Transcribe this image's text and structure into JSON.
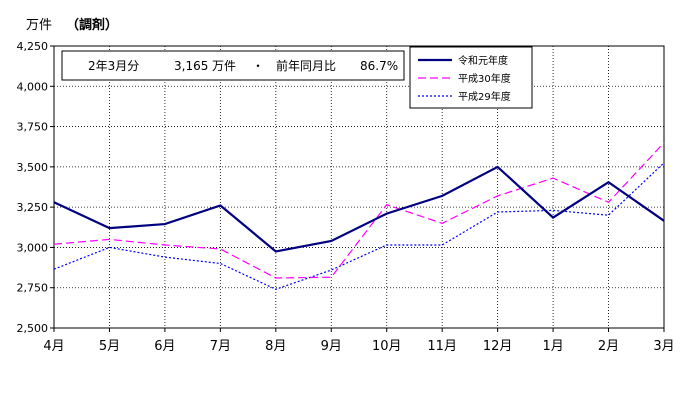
{
  "unit_label": "万件",
  "category_label": "（調剤）",
  "summary": {
    "month": "2年3月分",
    "count_value": "3,165",
    "count_unit": "万件",
    "bullet": "・",
    "ratio_label": "前年同月比",
    "ratio_value": "86.7%"
  },
  "chart_data": {
    "type": "line",
    "categories": [
      "4月",
      "5月",
      "6月",
      "7月",
      "8月",
      "9月",
      "10月",
      "11月",
      "12月",
      "1月",
      "2月",
      "3月"
    ],
    "ylim": [
      2500,
      4250
    ],
    "yticks": [
      "2,500",
      "2,750",
      "3,000",
      "3,250",
      "3,500",
      "3,750",
      "4,000",
      "4,250"
    ],
    "ytick_values": [
      2500,
      2750,
      3000,
      3250,
      3500,
      3750,
      4000,
      4250
    ],
    "grid": true,
    "legend_position": "top-right",
    "series": [
      {
        "name": "令和元年度",
        "color": "#000080",
        "style": "solid",
        "values": [
          3280,
          3120,
          3145,
          3260,
          2975,
          3040,
          3210,
          3320,
          3500,
          3185,
          3405,
          3165
        ]
      },
      {
        "name": "平成30年度",
        "color": "#ff00ff",
        "style": "dashed",
        "values": [
          3020,
          3050,
          3015,
          2990,
          2810,
          2815,
          3265,
          3150,
          3320,
          3430,
          3280,
          3650
        ]
      },
      {
        "name": "平成29年度",
        "color": "#0000ff",
        "style": "dotted",
        "values": [
          2865,
          3000,
          2940,
          2900,
          2740,
          2860,
          3015,
          3015,
          3220,
          3230,
          3200,
          3525
        ]
      }
    ]
  }
}
